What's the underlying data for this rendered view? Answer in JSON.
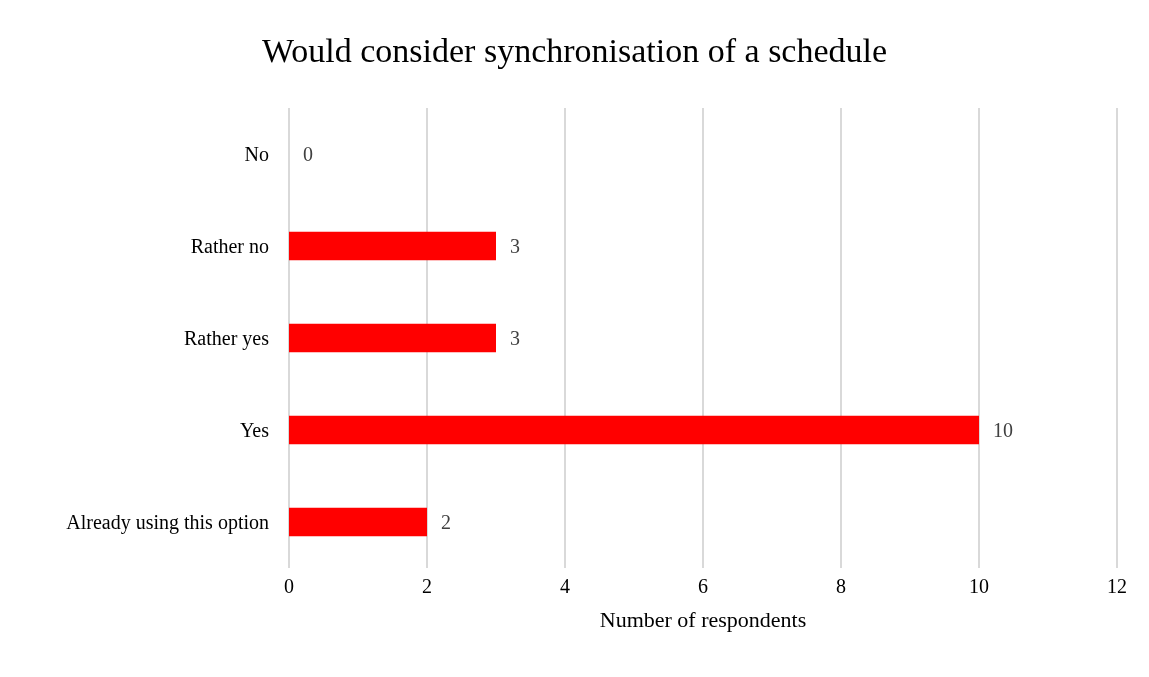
{
  "chart_data": {
    "type": "bar",
    "orientation": "horizontal",
    "title": "Would consider synchronisation of a schedule",
    "xlabel": "Number of respondents",
    "categories": [
      "No",
      "Rather no",
      "Rather yes",
      "Yes",
      "Already using this option"
    ],
    "values": [
      0,
      3,
      3,
      10,
      2
    ],
    "color": "#ff0000",
    "xlim": [
      0,
      12
    ],
    "xticks": [
      0,
      2,
      4,
      6,
      8,
      10,
      12
    ],
    "grid": "x",
    "data_labels": true
  }
}
